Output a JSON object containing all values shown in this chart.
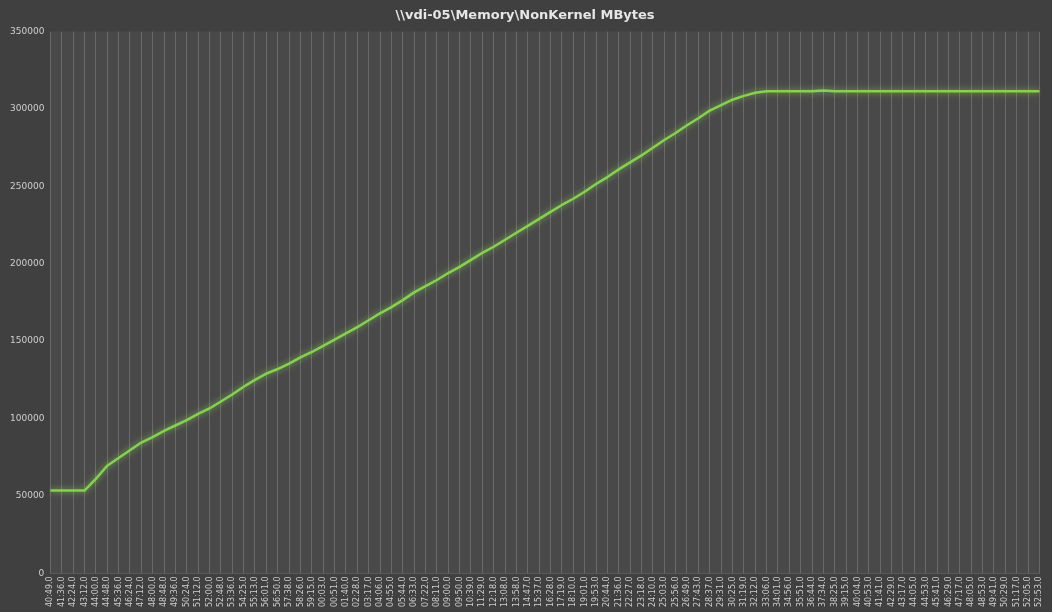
{
  "chart_data": {
    "type": "line",
    "title": "\\\\vdi-05\\Memory\\NonKernel MBytes",
    "categories": [
      "40:49.0",
      "41:36.0",
      "42:24.0",
      "43:12.0",
      "44:00.0",
      "44:48.0",
      "45:36.0",
      "46:24.0",
      "47:12.0",
      "48:00.0",
      "48:48.0",
      "49:36.0",
      "50:24.0",
      "51:12.0",
      "52:00.0",
      "52:48.0",
      "53:36.0",
      "54:25.0",
      "55:13.0",
      "56:01.0",
      "56:50.0",
      "57:38.0",
      "58:26.0",
      "59:15.0",
      "00:03.0",
      "00:51.0",
      "01:40.0",
      "02:28.0",
      "03:17.0",
      "04:06.0",
      "04:55.0",
      "05:44.0",
      "06:33.0",
      "07:22.0",
      "08:11.0",
      "09:00.0",
      "09:50.0",
      "10:39.0",
      "11:29.0",
      "12:18.0",
      "13:08.0",
      "13:58.0",
      "14:47.0",
      "15:37.0",
      "16:28.0",
      "17:19.0",
      "18:10.0",
      "19:01.0",
      "19:53.0",
      "20:44.0",
      "21:36.0",
      "22:27.0",
      "23:18.0",
      "24:10.0",
      "25:03.0",
      "25:56.0",
      "26:49.0",
      "27:43.0",
      "28:37.0",
      "29:31.0",
      "30:25.0",
      "31:19.0",
      "32:12.0",
      "33:06.0",
      "34:01.0",
      "34:56.0",
      "35:51.0",
      "36:44.0",
      "37:34.0",
      "38:25.0",
      "39:15.0",
      "40:04.0",
      "40:53.0",
      "41:41.0",
      "42:29.0",
      "43:17.0",
      "44:05.0",
      "44:53.0",
      "45:41.0",
      "46:29.0",
      "47:17.0",
      "48:05.0",
      "48:53.0",
      "49:41.0",
      "50:29.0",
      "51:17.0",
      "52:05.0",
      "52:53.0"
    ],
    "series": [
      {
        "color": "#86d14f",
        "values": [
          53500,
          53500,
          53500,
          53500,
          61000,
          69500,
          74500,
          79500,
          84500,
          88000,
          92000,
          95500,
          99000,
          103000,
          106500,
          111000,
          115500,
          120500,
          125000,
          129000,
          132000,
          135500,
          139500,
          143000,
          147000,
          151000,
          155000,
          159000,
          163500,
          168000,
          172000,
          176500,
          181500,
          185500,
          189500,
          194000,
          198000,
          202500,
          207000,
          211000,
          215500,
          220000,
          224500,
          229000,
          233500,
          238000,
          242000,
          246500,
          251500,
          256000,
          261000,
          265500,
          270000,
          275000,
          280000,
          284500,
          289500,
          294000,
          299000,
          302500,
          306000,
          308500,
          310500,
          311500,
          311500,
          311500,
          311500,
          311500,
          312000,
          311500,
          311500,
          311500,
          311500,
          311500,
          311500,
          311500,
          311500,
          311500,
          311500,
          311500,
          311500,
          311500,
          311500,
          311500,
          311500,
          311500,
          311500,
          311500
        ]
      }
    ],
    "ylim": [
      0,
      350000
    ],
    "yticks": [
      0,
      50000,
      100000,
      150000,
      200000,
      250000,
      300000,
      350000
    ],
    "grid": "x",
    "marker": "none",
    "line_style": "solid",
    "legend": false
  }
}
